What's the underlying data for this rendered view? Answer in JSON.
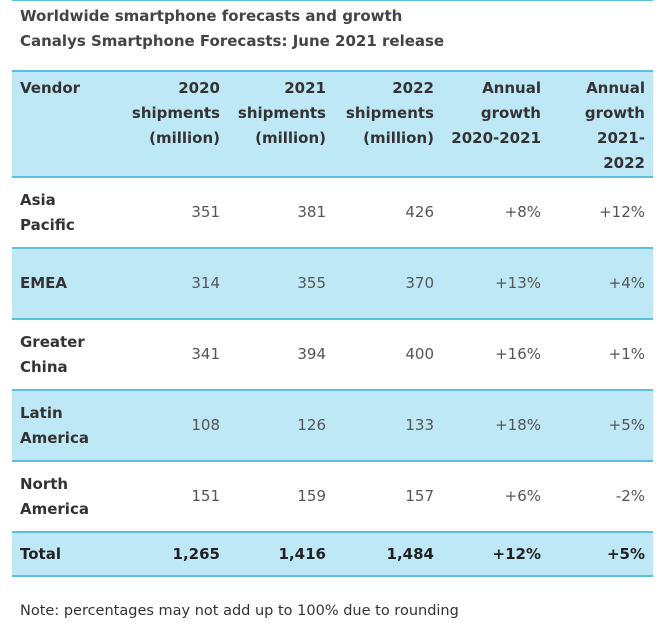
{
  "title": "Worldwide smartphone forecasts and growth",
  "subtitle": "Canalys Smartphone Forecasts: June 2021 release",
  "headers": [
    [
      "Vendor"
    ],
    [
      "2020",
      "shipments",
      "(million)"
    ],
    [
      "2021",
      "shipments",
      "(million)"
    ],
    [
      "2022",
      "shipments",
      "(million)"
    ],
    [
      "Annual",
      "growth",
      "2020-2021"
    ],
    [
      "Annual",
      "growth",
      "2021-2022"
    ]
  ],
  "rows": [
    {
      "vendor": [
        "Asia",
        "Pacific"
      ],
      "y2020": "351",
      "y2021": "381",
      "y2022": "426",
      "g2021": "+8%",
      "g2022": "+12%"
    },
    {
      "vendor": [
        "EMEA"
      ],
      "y2020": "314",
      "y2021": "355",
      "y2022": "370",
      "g2021": "+13%",
      "g2022": "+4%"
    },
    {
      "vendor": [
        "Greater",
        "China"
      ],
      "y2020": "341",
      "y2021": "394",
      "y2022": "400",
      "g2021": "+16%",
      "g2022": "+1%"
    },
    {
      "vendor": [
        "Latin",
        "America"
      ],
      "y2020": "108",
      "y2021": "126",
      "y2022": "133",
      "g2021": "+18%",
      "g2022": "+5%"
    },
    {
      "vendor": [
        "North",
        "America"
      ],
      "y2020": "151",
      "y2021": "159",
      "y2022": "157",
      "g2021": "+6%",
      "g2022": "-2%"
    }
  ],
  "total": {
    "vendor": "Total",
    "y2020": "1,265",
    "y2021": "1,416",
    "y2022": "1,484",
    "g2021": "+12%",
    "g2022": "+5%"
  },
  "note": "Note: percentages may not add up to 100% due to rounding",
  "colors": {
    "accent_border": "#5bc0de",
    "row_shade": "#bfe8f7"
  }
}
